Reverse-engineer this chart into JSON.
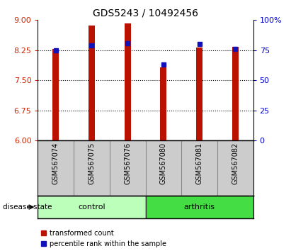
{
  "title": "GDS5243 / 10492456",
  "samples": [
    "GSM567074",
    "GSM567075",
    "GSM567076",
    "GSM567080",
    "GSM567081",
    "GSM567082"
  ],
  "groups": [
    "control",
    "control",
    "control",
    "arthritis",
    "arthritis",
    "arthritis"
  ],
  "group_labels": [
    "control",
    "arthritis"
  ],
  "bar_bottom": 6.0,
  "transformed_counts": [
    8.28,
    8.87,
    8.92,
    7.82,
    8.31,
    8.34
  ],
  "percentile_ranks": [
    75,
    79,
    81,
    63,
    80,
    76
  ],
  "ylim_left": [
    6,
    9
  ],
  "ylim_right": [
    0,
    100
  ],
  "yticks_left": [
    6,
    6.75,
    7.5,
    8.25,
    9
  ],
  "yticks_right": [
    0,
    25,
    50,
    75,
    100
  ],
  "bar_color": "#BB1100",
  "dot_color": "#1111BB",
  "grid_lines": [
    6.75,
    7.5,
    8.25
  ],
  "bar_width": 0.18,
  "axis_label_color_left": "#CC2200",
  "axis_label_color_right": "#0000CC",
  "ctrl_color": "#BBFFBB",
  "arth_color": "#44DD44",
  "label_area_color": "#CCCCCC",
  "legend_items": [
    "transformed count",
    "percentile rank within the sample"
  ],
  "legend_colors": [
    "#BB1100",
    "#1111BB"
  ]
}
